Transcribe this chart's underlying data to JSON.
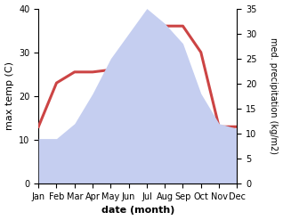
{
  "months": [
    "Jan",
    "Feb",
    "Mar",
    "Apr",
    "May",
    "Jun",
    "Jul",
    "Aug",
    "Sep",
    "Oct",
    "Nov",
    "Dec"
  ],
  "temperature": [
    13,
    23,
    25.5,
    25.5,
    26,
    33,
    35,
    36,
    36,
    30,
    13,
    13
  ],
  "precipitation": [
    9,
    9,
    12,
    18,
    25,
    30,
    35,
    32,
    28,
    18,
    12,
    11
  ],
  "temp_color": "#cc4444",
  "precip_fill_color": "#c5cef0",
  "background_color": "#ffffff",
  "xlabel": "date (month)",
  "ylabel_left": "max temp (C)",
  "ylabel_right": "med. precipitation (kg/m2)",
  "ylim_left": [
    0,
    40
  ],
  "ylim_right": [
    0,
    35
  ],
  "yticks_left": [
    0,
    10,
    20,
    30,
    40
  ],
  "yticks_right": [
    0,
    5,
    10,
    15,
    20,
    25,
    30,
    35
  ],
  "temp_linewidth": 2.2,
  "figsize": [
    3.18,
    2.47
  ],
  "dpi": 100
}
